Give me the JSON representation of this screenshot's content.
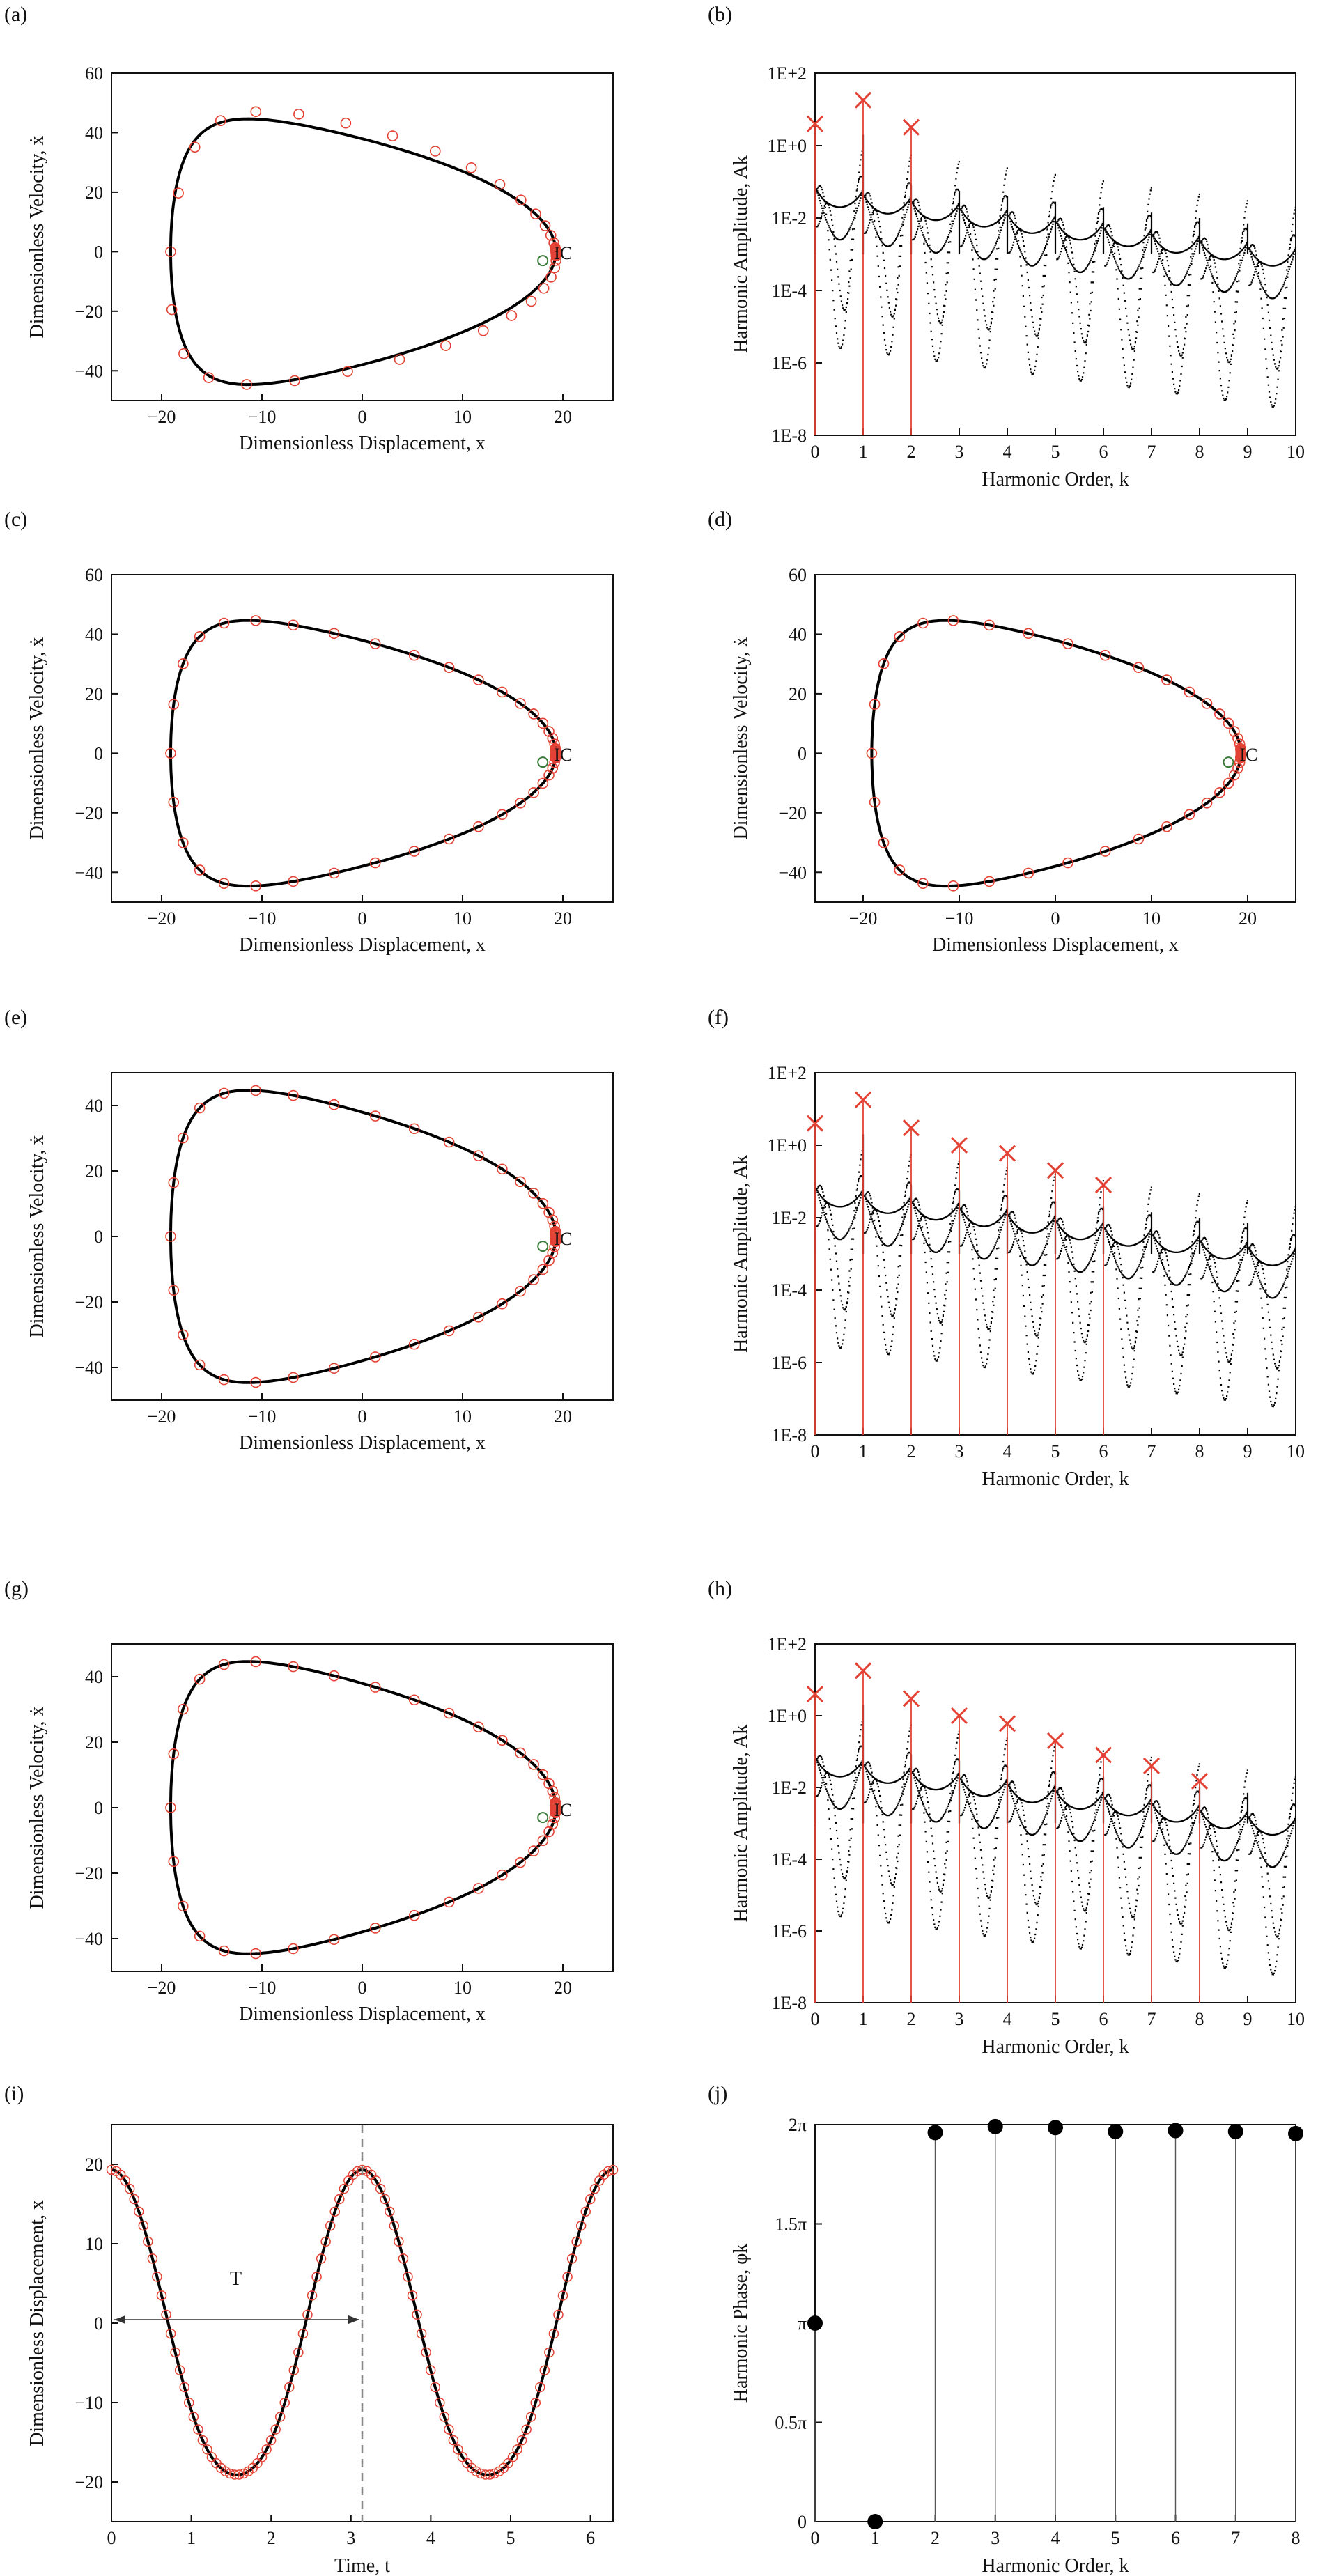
{
  "figure": {
    "panels": [
      {
        "id": "a",
        "label": "(a)",
        "kind": "phase",
        "ic_label": "IC",
        "xlabel": "Dimensionless Displacement, x",
        "ylabel": "Dimensionless Velocity, ẋ",
        "x_ticks": [
          "-20",
          "-10",
          "0",
          "10",
          "20"
        ],
        "y_ticks": [
          "60",
          "40",
          "20",
          "0",
          "-20",
          "-40"
        ]
      },
      {
        "id": "b",
        "label": "(b)",
        "kind": "harm",
        "xlabel": "Harmonic Order, k",
        "ylabel": "Harmonic Amplitude, Ak",
        "x_ticks": [
          "0",
          "1",
          "2",
          "3",
          "4",
          "5",
          "6",
          "7",
          "8",
          "9",
          "10"
        ],
        "y_ticks": [
          "1E+2",
          "1E+0",
          "1E-2",
          "1E-4",
          "1E-6",
          "1E-8"
        ]
      },
      {
        "id": "c",
        "label": "(c)",
        "kind": "phase",
        "ic_label": "IC",
        "xlabel": "Dimensionless Displacement, x",
        "ylabel": "Dimensionless Velocity, ẋ",
        "x_ticks": [
          "-20",
          "-10",
          "0",
          "10",
          "20"
        ],
        "y_ticks": [
          "60",
          "40",
          "20",
          "0",
          "-20",
          "-40"
        ]
      },
      {
        "id": "d",
        "label": "(d)",
        "kind": "phase",
        "ic_label": "IC",
        "xlabel": "Dimensionless Displacement, x",
        "ylabel": "Dimensionless Velocity, ẋ",
        "x_ticks": [
          "-20",
          "-10",
          "0",
          "10",
          "20"
        ],
        "y_ticks": [
          "60",
          "40",
          "20",
          "0",
          "-20",
          "-40"
        ]
      },
      {
        "id": "e",
        "label": "(e)",
        "kind": "phase",
        "ic_label": "IC",
        "xlabel": "Dimensionless Displacement, x",
        "ylabel": "Dimensionless Velocity, ẋ",
        "x_ticks": [
          "-20",
          "-10",
          "0",
          "10",
          "20"
        ],
        "y_ticks": [
          "40",
          "20",
          "0",
          "-20",
          "-40"
        ]
      },
      {
        "id": "f",
        "label": "(f)",
        "kind": "harm",
        "xlabel": "Harmonic Order, k",
        "ylabel": "Harmonic Amplitude, Ak",
        "x_ticks": [
          "0",
          "1",
          "2",
          "3",
          "4",
          "5",
          "6",
          "7",
          "8",
          "9",
          "10"
        ],
        "y_ticks": [
          "1E+2",
          "1E+0",
          "1E-2",
          "1E-4",
          "1E-6",
          "1E-8"
        ]
      },
      {
        "id": "g",
        "label": "(g)",
        "kind": "phase",
        "ic_label": "IC",
        "xlabel": "Dimensionless Displacement, x",
        "ylabel": "Dimensionless Velocity, ẋ",
        "x_ticks": [
          "-20",
          "-10",
          "0",
          "10",
          "20"
        ],
        "y_ticks": [
          "40",
          "20",
          "0",
          "-20",
          "-40"
        ]
      },
      {
        "id": "h",
        "label": "(h)",
        "kind": "harm",
        "xlabel": "Harmonic Order, k",
        "ylabel": "Harmonic Amplitude, Ak",
        "x_ticks": [
          "0",
          "1",
          "2",
          "3",
          "4",
          "5",
          "6",
          "7",
          "8",
          "9",
          "10"
        ],
        "y_ticks": [
          "1E+2",
          "1E+0",
          "1E-2",
          "1E-4",
          "1E-6",
          "1E-8"
        ]
      },
      {
        "id": "i",
        "label": "(i)",
        "kind": "time",
        "period_label": "T",
        "xlabel": "Time, t",
        "ylabel": "Dimensionless Displacement, x",
        "x_ticks": [
          "0",
          "1",
          "2",
          "3",
          "4",
          "5",
          "6"
        ],
        "y_ticks": [
          "20",
          "10",
          "0",
          "-10",
          "-20"
        ]
      },
      {
        "id": "j",
        "label": "(j)",
        "kind": "phase_ang",
        "xlabel": "Harmonic Order, k",
        "ylabel": "Harmonic Phase, φk",
        "x_ticks": [
          "0",
          "1",
          "2",
          "3",
          "4",
          "5",
          "6",
          "7",
          "8"
        ],
        "y_ticks": [
          "2π",
          "1.5π",
          "π",
          "0.5π",
          "0"
        ]
      }
    ]
  },
  "colors": {
    "curve": "#000000",
    "marker": "#e34234",
    "ic_marker": "#3a7a3a",
    "axis": "#111111",
    "dash": "#888888"
  },
  "chart_data": [
    {
      "type": "line",
      "panel": "a",
      "xlim": [
        -25,
        25
      ],
      "ylim": [
        -50,
        60
      ],
      "legend": "none",
      "grid": false,
      "series": [
        {
          "kind": "orbit-curve",
          "approx": "closed limit cycle x∈[-21,18], ẋ∈[-41,42]"
        },
        {
          "kind": "harmonic-balance-markers",
          "approx": "distorted ring x∈[-21,18], ẋ∈[-42,46]"
        }
      ],
      "ic_point": [
        18,
        -3
      ]
    },
    {
      "type": "scatter",
      "panel": "b",
      "xlim": [
        0,
        10
      ],
      "ylim_log10": [
        -8,
        2
      ],
      "legend": "none",
      "grid": false,
      "spectrum_floor": "dense black points decaying from ~1E-1 near k=0 to ~1E-3 at k=10",
      "selected_harmonics": [
        {
          "k": 0,
          "A": 4.0
        },
        {
          "k": 1,
          "A": 18.0
        },
        {
          "k": 2,
          "A": 3.2
        }
      ]
    },
    {
      "type": "line",
      "panel": "c",
      "xlim": [
        -25,
        25
      ],
      "ylim": [
        -50,
        60
      ],
      "ic_point": [
        18,
        -3
      ]
    },
    {
      "type": "line",
      "panel": "d",
      "xlim": [
        -25,
        25
      ],
      "ylim": [
        -50,
        60
      ],
      "ic_point": [
        18,
        -3
      ]
    },
    {
      "type": "line",
      "panel": "e",
      "xlim": [
        -25,
        25
      ],
      "ylim": [
        -50,
        50
      ],
      "ic_point": [
        18,
        -3
      ]
    },
    {
      "type": "scatter",
      "panel": "f",
      "xlim": [
        0,
        10
      ],
      "ylim_log10": [
        -8,
        2
      ],
      "selected_harmonics": [
        {
          "k": 0,
          "A": 4.0
        },
        {
          "k": 1,
          "A": 18.0
        },
        {
          "k": 2,
          "A": 3.0
        },
        {
          "k": 3,
          "A": 1.0
        },
        {
          "k": 4,
          "A": 0.6
        },
        {
          "k": 5,
          "A": 0.2
        },
        {
          "k": 6,
          "A": 0.08
        }
      ]
    },
    {
      "type": "line",
      "panel": "g",
      "xlim": [
        -25,
        25
      ],
      "ylim": [
        -50,
        50
      ],
      "ic_point": [
        18,
        -3
      ]
    },
    {
      "type": "scatter",
      "panel": "h",
      "xlim": [
        0,
        10
      ],
      "ylim_log10": [
        -8,
        2
      ],
      "selected_harmonics": [
        {
          "k": 0,
          "A": 4.0
        },
        {
          "k": 1,
          "A": 18.0
        },
        {
          "k": 2,
          "A": 3.0
        },
        {
          "k": 3,
          "A": 1.0
        },
        {
          "k": 4,
          "A": 0.6
        },
        {
          "k": 5,
          "A": 0.2
        },
        {
          "k": 6,
          "A": 0.08
        },
        {
          "k": 7,
          "A": 0.04
        },
        {
          "k": 8,
          "A": 0.015
        }
      ]
    },
    {
      "type": "line",
      "panel": "i",
      "xlim": [
        0,
        6.283
      ],
      "ylim": [
        -25,
        25
      ],
      "period": 3.1416,
      "series": [
        {
          "kind": "time-history",
          "approx": "x(t) max 18 at t=0,π,2π; min -21 at t≈1.7,4.85"
        }
      ]
    },
    {
      "type": "scatter",
      "panel": "j",
      "xlim": [
        0,
        8
      ],
      "ylim_pi": [
        0,
        2
      ],
      "points": [
        {
          "k": 0,
          "phi_pi": 1.0
        },
        {
          "k": 1,
          "phi_pi": 0.0
        },
        {
          "k": 2,
          "phi_pi": 1.96
        },
        {
          "k": 3,
          "phi_pi": 1.99
        },
        {
          "k": 4,
          "phi_pi": 1.985
        },
        {
          "k": 5,
          "phi_pi": 1.965
        },
        {
          "k": 6,
          "phi_pi": 1.97
        },
        {
          "k": 7,
          "phi_pi": 1.965
        },
        {
          "k": 8,
          "phi_pi": 1.955
        }
      ]
    }
  ]
}
